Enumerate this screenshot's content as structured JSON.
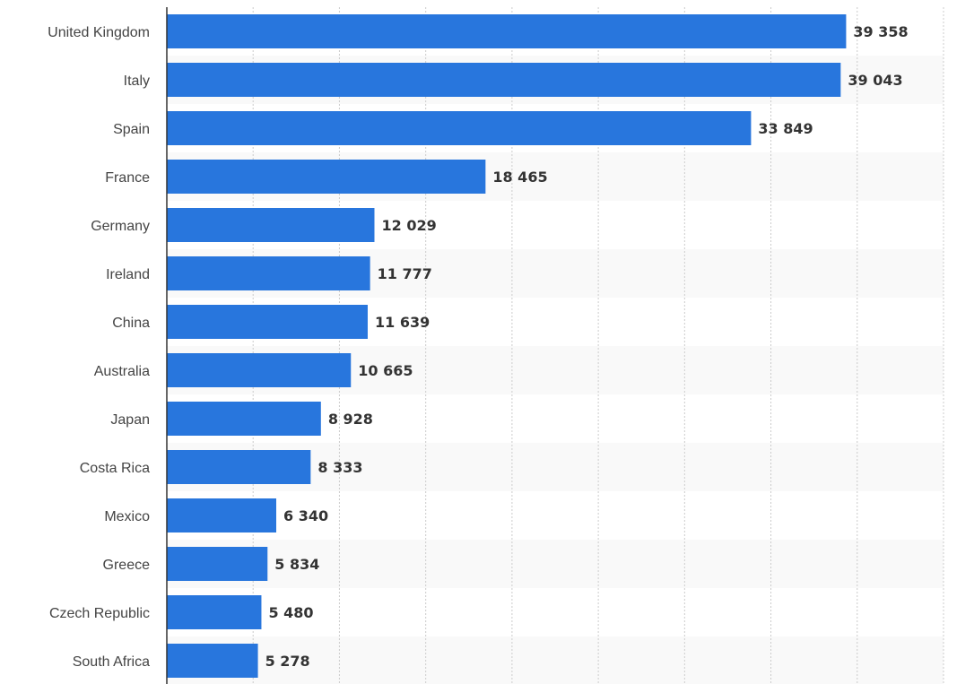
{
  "chart_data": {
    "type": "bar",
    "orientation": "horizontal",
    "categories": [
      "United Kingdom",
      "Italy",
      "Spain",
      "France",
      "Germany",
      "Ireland",
      "China",
      "Australia",
      "Japan",
      "Costa Rica",
      "Mexico",
      "Greece",
      "Czech Republic",
      "South Africa"
    ],
    "values": [
      39358,
      39043,
      33849,
      18465,
      12029,
      11777,
      11639,
      10665,
      8928,
      8333,
      6340,
      5834,
      5480,
      5278
    ],
    "value_labels": [
      "39 358",
      "39 043",
      "33 849",
      "18 465",
      "12 029",
      "11 777",
      "11 639",
      "10 665",
      "8 928",
      "8 333",
      "6 340",
      "5 834",
      "5 480",
      "5 278"
    ],
    "xlim": [
      0,
      45000
    ],
    "grid": true,
    "bar_color": "#2876dd",
    "alt_row_color": "#f9f9f9",
    "grid_color": "#cccccc",
    "title": "",
    "xlabel": "",
    "ylabel": ""
  }
}
